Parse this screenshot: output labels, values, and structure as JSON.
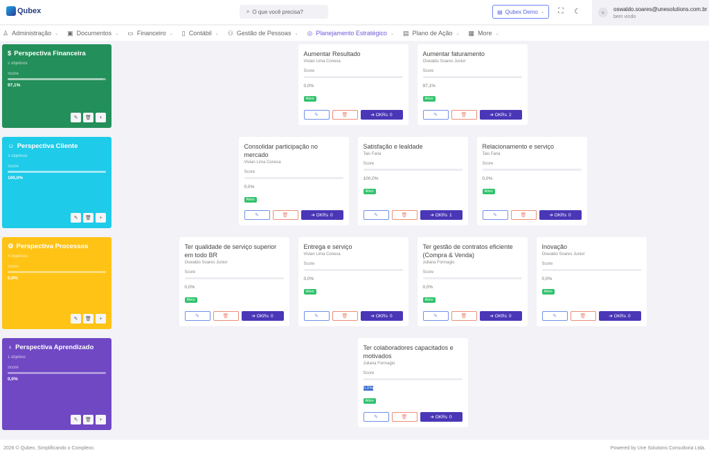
{
  "app": {
    "logo": "Qubex",
    "search_placeholder": "O que você precisa?",
    "company": "Qubex Demo",
    "user_email": "oswaldo.soares@unesolutions.com.br",
    "user_welcome": "bem vindo"
  },
  "nav": [
    {
      "label": "Administração",
      "icon": "user-icon"
    },
    {
      "label": "Documentos",
      "icon": "archive-icon"
    },
    {
      "label": "Financeiro",
      "icon": "folder-icon"
    },
    {
      "label": "Contábil",
      "icon": "book-icon"
    },
    {
      "label": "Gestão de Pessoas",
      "icon": "people-icon"
    },
    {
      "label": "Planejamento Estratégico",
      "icon": "target-icon",
      "active": true
    },
    {
      "label": "Plano de Ação",
      "icon": "note-icon"
    },
    {
      "label": "More",
      "icon": "briefcase-icon"
    }
  ],
  "score_label": "Score",
  "status_label": "Ativo",
  "okrs_label": "OKRs",
  "perspectives": [
    {
      "title": "Perspectiva Financeira",
      "count": "2 objetivos",
      "score": "97,1%",
      "score_value": 97.1,
      "color": "#238f5a",
      "icon": "dollar-icon",
      "objectives": [
        {
          "title": "Aumentar Resultado",
          "owner": "Vivian Lima Conesa",
          "score": "0,0%",
          "okrs": 0
        },
        {
          "title": "Aumentar faturamento",
          "owner": "Oswaldo Soares Junior",
          "score": "97,1%",
          "okrs": 2
        }
      ]
    },
    {
      "title": "Perspectiva Cliente",
      "count": "3 objetivos",
      "score": "100,0%",
      "score_value": 100,
      "color": "#1ecbe8",
      "icon": "users-icon",
      "objectives": [
        {
          "title": "Consolidar participação no mercado",
          "owner": "Vivian Lima Conesa",
          "score": "0,0%",
          "okrs": 0
        },
        {
          "title": "Satisfação e lealdade",
          "owner": "Tais Faria",
          "score": "100,0%",
          "okrs": 1
        },
        {
          "title": "Relacionamento e serviço",
          "owner": "Tais Faria",
          "score": "0,0%",
          "okrs": 0
        }
      ]
    },
    {
      "title": "Perspectiva Processos",
      "count": "4 objetivos",
      "score": "0,0%",
      "score_value": 0,
      "color": "#ffc315",
      "icon": "gear-icon",
      "objectives": [
        {
          "title": "Ter qualidade de serviço superior em todo BR",
          "owner": "Oswaldo Soares Junior",
          "score": "0,0%",
          "okrs": 0
        },
        {
          "title": "Entrega e serviço",
          "owner": "Vivian Lima Conesa",
          "score": "0,0%",
          "okrs": 0
        },
        {
          "title": "Ter gestão de contratos eficiente (Compra & Venda)",
          "owner": "Juliana Formagio",
          "score": "0,0%",
          "okrs": 0
        },
        {
          "title": "Inovação",
          "owner": "Oswaldo Soares Junior",
          "score": "0,0%",
          "okrs": 0
        }
      ]
    },
    {
      "title": "Perspectiva Aprendizado",
      "count": "1 objetivo",
      "score": "0,0%",
      "score_value": 0,
      "color": "#7048c4",
      "icon": "lightbulb-icon",
      "objectives": [
        {
          "title": "Ter colaboradores capacitados e motivados",
          "owner": "Juliana Formagio",
          "score": "0,0%",
          "okrs": 0,
          "selected": true
        }
      ]
    }
  ],
  "footer": {
    "left": "2026 © Qubex, Simplificando o Complexo.",
    "right": "Powered by Une Solutions Consultoria Ltda."
  }
}
